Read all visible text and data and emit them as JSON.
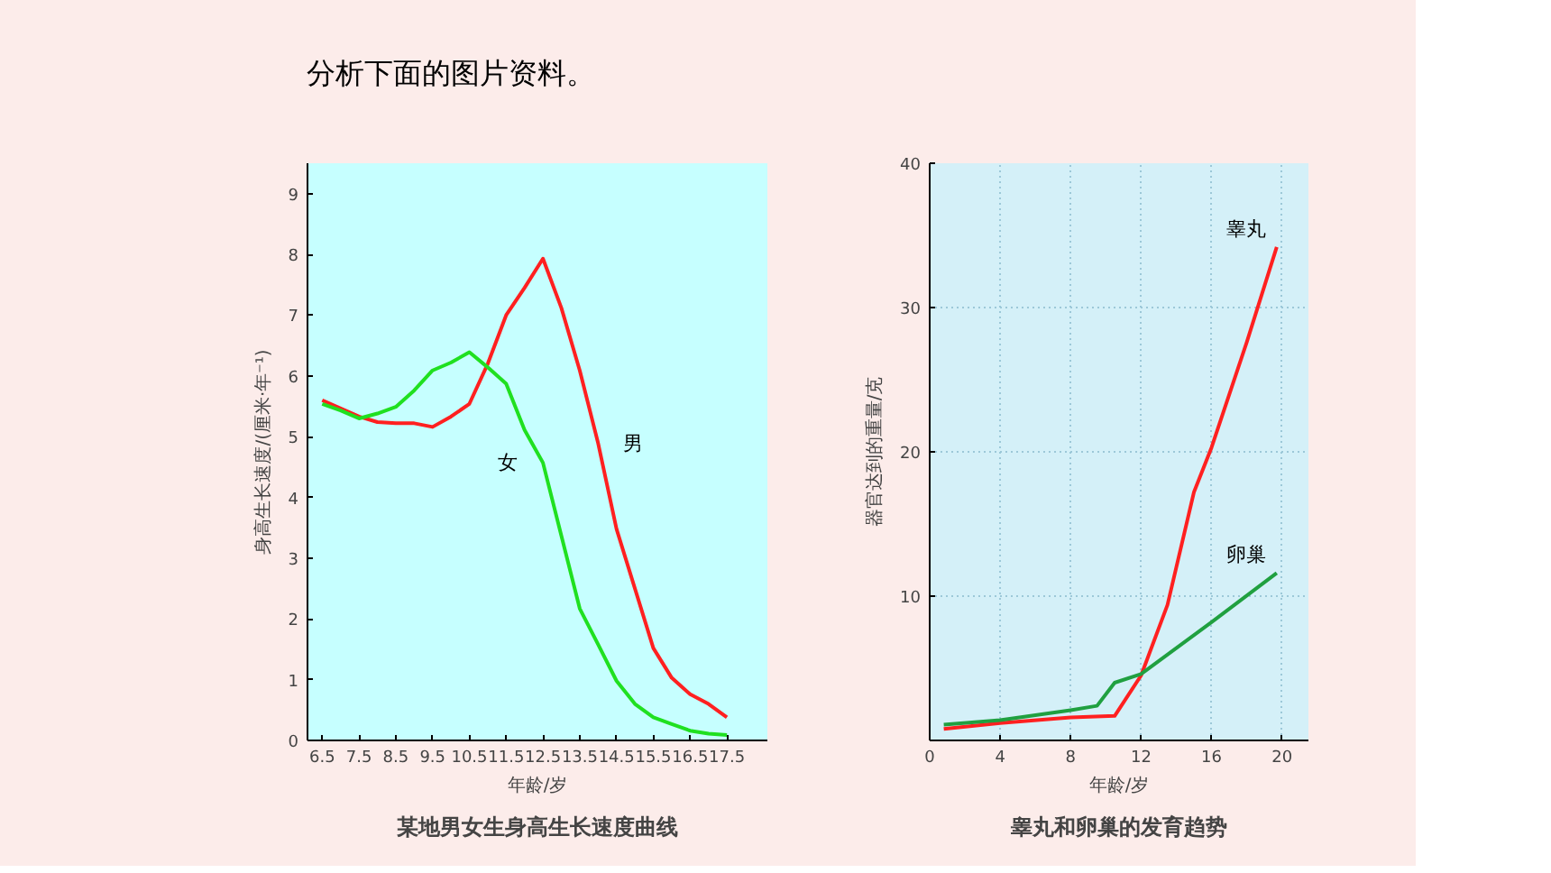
{
  "chart_data": [
    {
      "type": "line",
      "title": "某地男女生身高生长速度曲线",
      "xlabel": "年龄/岁",
      "ylabel": "身高生长速度/(厘米·年⁻¹)",
      "annotations": [
        "分析下面的图片资料。"
      ],
      "xlim": [
        6.1,
        18.6
      ],
      "ylim": [
        0,
        9.5
      ],
      "xticks": [
        6.5,
        7.5,
        8.5,
        9.5,
        10.5,
        11.5,
        12.5,
        13.5,
        14.5,
        15.5,
        16.5,
        17.5
      ],
      "yticks": [
        0,
        1,
        2,
        3,
        4,
        5,
        6,
        7,
        8,
        9
      ],
      "grid": false,
      "legend": false,
      "series": [
        {
          "name": "男",
          "color": "#ff2020",
          "x": [
            6.5,
            7.5,
            8,
            8.5,
            9,
            9.5,
            10,
            10.5,
            11,
            11.5,
            12,
            12.5,
            13,
            13.5,
            14,
            14.5,
            15,
            15.5,
            16,
            16.5,
            17,
            17.5
          ],
          "values": [
            5.6,
            5.33,
            5.24,
            5.22,
            5.22,
            5.16,
            5.33,
            5.54,
            6.2,
            7.0,
            7.45,
            7.93,
            7.12,
            6.09,
            4.89,
            3.48,
            2.5,
            1.52,
            1.03,
            0.76,
            0.6,
            0.38
          ]
        },
        {
          "name": "女",
          "color": "#20e020",
          "x": [
            6.5,
            7,
            7.5,
            8,
            8.5,
            9,
            9.5,
            10,
            10.5,
            11,
            11.5,
            12,
            12.5,
            13,
            13.5,
            14,
            14.5,
            15,
            15.5,
            16,
            16.5,
            17,
            17.5
          ],
          "values": [
            5.54,
            5.43,
            5.3,
            5.38,
            5.49,
            5.76,
            6.09,
            6.22,
            6.39,
            6.14,
            5.87,
            5.11,
            4.57,
            3.37,
            2.17,
            1.58,
            0.98,
            0.6,
            0.38,
            0.27,
            0.16,
            0.11,
            0.09
          ]
        }
      ]
    },
    {
      "type": "line",
      "title": "睾丸和卵巢的发育趋势",
      "xlabel": "年龄/岁",
      "ylabel": "器官达到的重量/克",
      "xlim": [
        0,
        21.5
      ],
      "ylim": [
        0,
        40
      ],
      "xticks": [
        0,
        4,
        8,
        12,
        16,
        20
      ],
      "yticks": [
        10,
        20,
        30,
        40
      ],
      "grid": true,
      "legend": false,
      "series": [
        {
          "name": "睾丸",
          "color": "#ff2020",
          "x": [
            0.8,
            4,
            8,
            10.5,
            12,
            13.5,
            15,
            16,
            18,
            19.7
          ],
          "values": [
            0.8,
            1.2,
            1.6,
            1.7,
            4.5,
            9.4,
            17.2,
            20.3,
            27.6,
            34.2
          ]
        },
        {
          "name": "卵巢",
          "color": "#20a040",
          "x": [
            0.8,
            4,
            8,
            9.5,
            10.5,
            12,
            16,
            19.7
          ],
          "values": [
            1.1,
            1.4,
            2.1,
            2.4,
            4.0,
            4.6,
            8.2,
            11.6
          ]
        }
      ]
    }
  ]
}
